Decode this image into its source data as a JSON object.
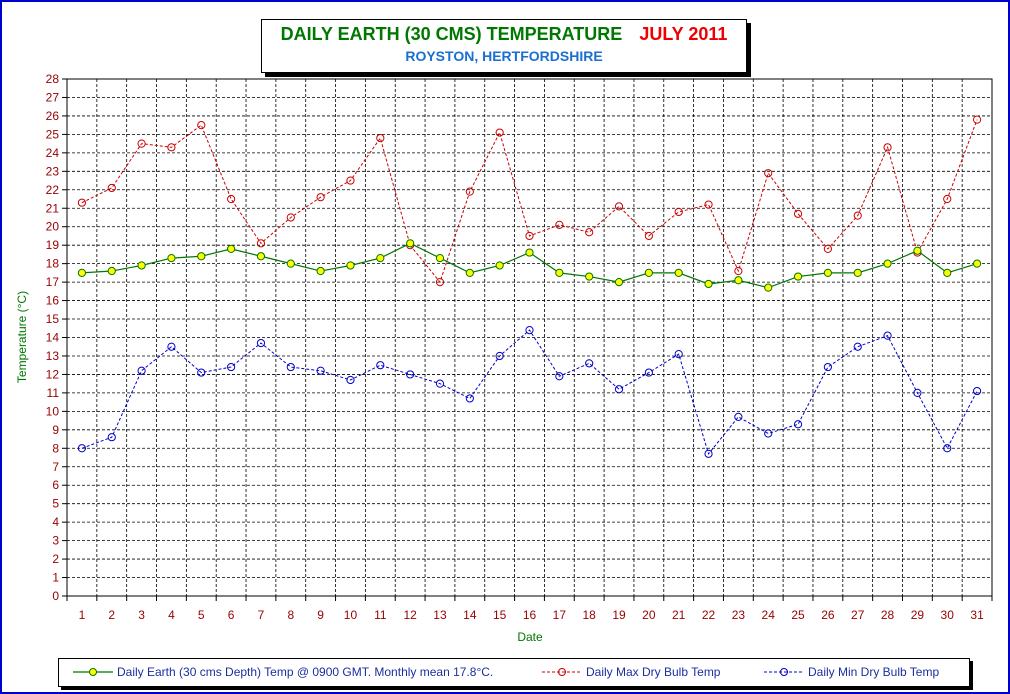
{
  "title": {
    "main": "DAILY EARTH (30 CMS) TEMPERATURE",
    "month": "JULY 2011",
    "subtitle": "ROYSTON, HERTFORDSHIRE"
  },
  "colors": {
    "earth_line": "#007700",
    "earth_marker": "#ffff00",
    "max_line": "#cc0000",
    "min_line": "#0000cc",
    "axis_label": "#007700",
    "x_tick": "#990000",
    "y_tick": "#990000",
    "frame": "#0000cc"
  },
  "legend": {
    "earth": "Daily Earth (30 cms Depth) Temp @ 0900 GMT. Monthly mean 17.8°C.",
    "max": "Daily Max Dry Bulb Temp",
    "min": "Daily Min Dry Bulb Temp"
  },
  "chart_data": {
    "type": "line",
    "title": "DAILY EARTH (30 CMS) TEMPERATURE  JULY 2011",
    "subtitle": "ROYSTON, HERTFORDSHIRE",
    "xlabel": "Date",
    "ylabel": "Temperature (°C)",
    "ylim": [
      0,
      28
    ],
    "y_step": 1,
    "grid": true,
    "legend_position": "bottom",
    "x": [
      1,
      2,
      3,
      4,
      5,
      6,
      7,
      8,
      9,
      10,
      11,
      12,
      13,
      14,
      15,
      16,
      17,
      18,
      19,
      20,
      21,
      22,
      23,
      24,
      25,
      26,
      27,
      28,
      29,
      30,
      31
    ],
    "series": [
      {
        "name": "Daily Earth (30 cms Depth) Temp @ 0900 GMT. Monthly mean 17.8°C.",
        "style": "solid",
        "values": [
          17.5,
          17.6,
          17.9,
          18.3,
          18.4,
          18.8,
          18.4,
          18.0,
          17.6,
          17.9,
          18.3,
          19.1,
          18.3,
          17.5,
          17.9,
          18.6,
          17.5,
          17.3,
          17.0,
          17.5,
          17.5,
          16.9,
          17.1,
          16.7,
          17.3,
          17.5,
          17.5,
          18.0,
          18.7,
          17.5,
          18.0
        ]
      },
      {
        "name": "Daily Max Dry Bulb Temp",
        "style": "dashed",
        "values": [
          21.3,
          22.1,
          24.5,
          24.3,
          25.5,
          21.5,
          19.1,
          20.5,
          21.6,
          22.5,
          24.8,
          19.0,
          17.0,
          21.9,
          25.1,
          19.5,
          20.1,
          19.7,
          21.1,
          19.5,
          20.8,
          21.2,
          17.6,
          22.9,
          20.7,
          18.8,
          20.6,
          24.3,
          18.6,
          21.5,
          25.8
        ]
      },
      {
        "name": "Daily Min Dry Bulb Temp",
        "style": "dashed",
        "values": [
          8.0,
          8.6,
          12.2,
          13.5,
          12.1,
          12.4,
          13.7,
          12.4,
          12.2,
          11.7,
          12.5,
          12.0,
          11.5,
          10.7,
          13.0,
          14.4,
          11.9,
          12.6,
          11.2,
          12.1,
          13.1,
          7.7,
          9.7,
          8.8,
          9.3,
          12.4,
          13.5,
          14.1,
          11.0,
          8.0,
          11.1
        ]
      }
    ]
  }
}
